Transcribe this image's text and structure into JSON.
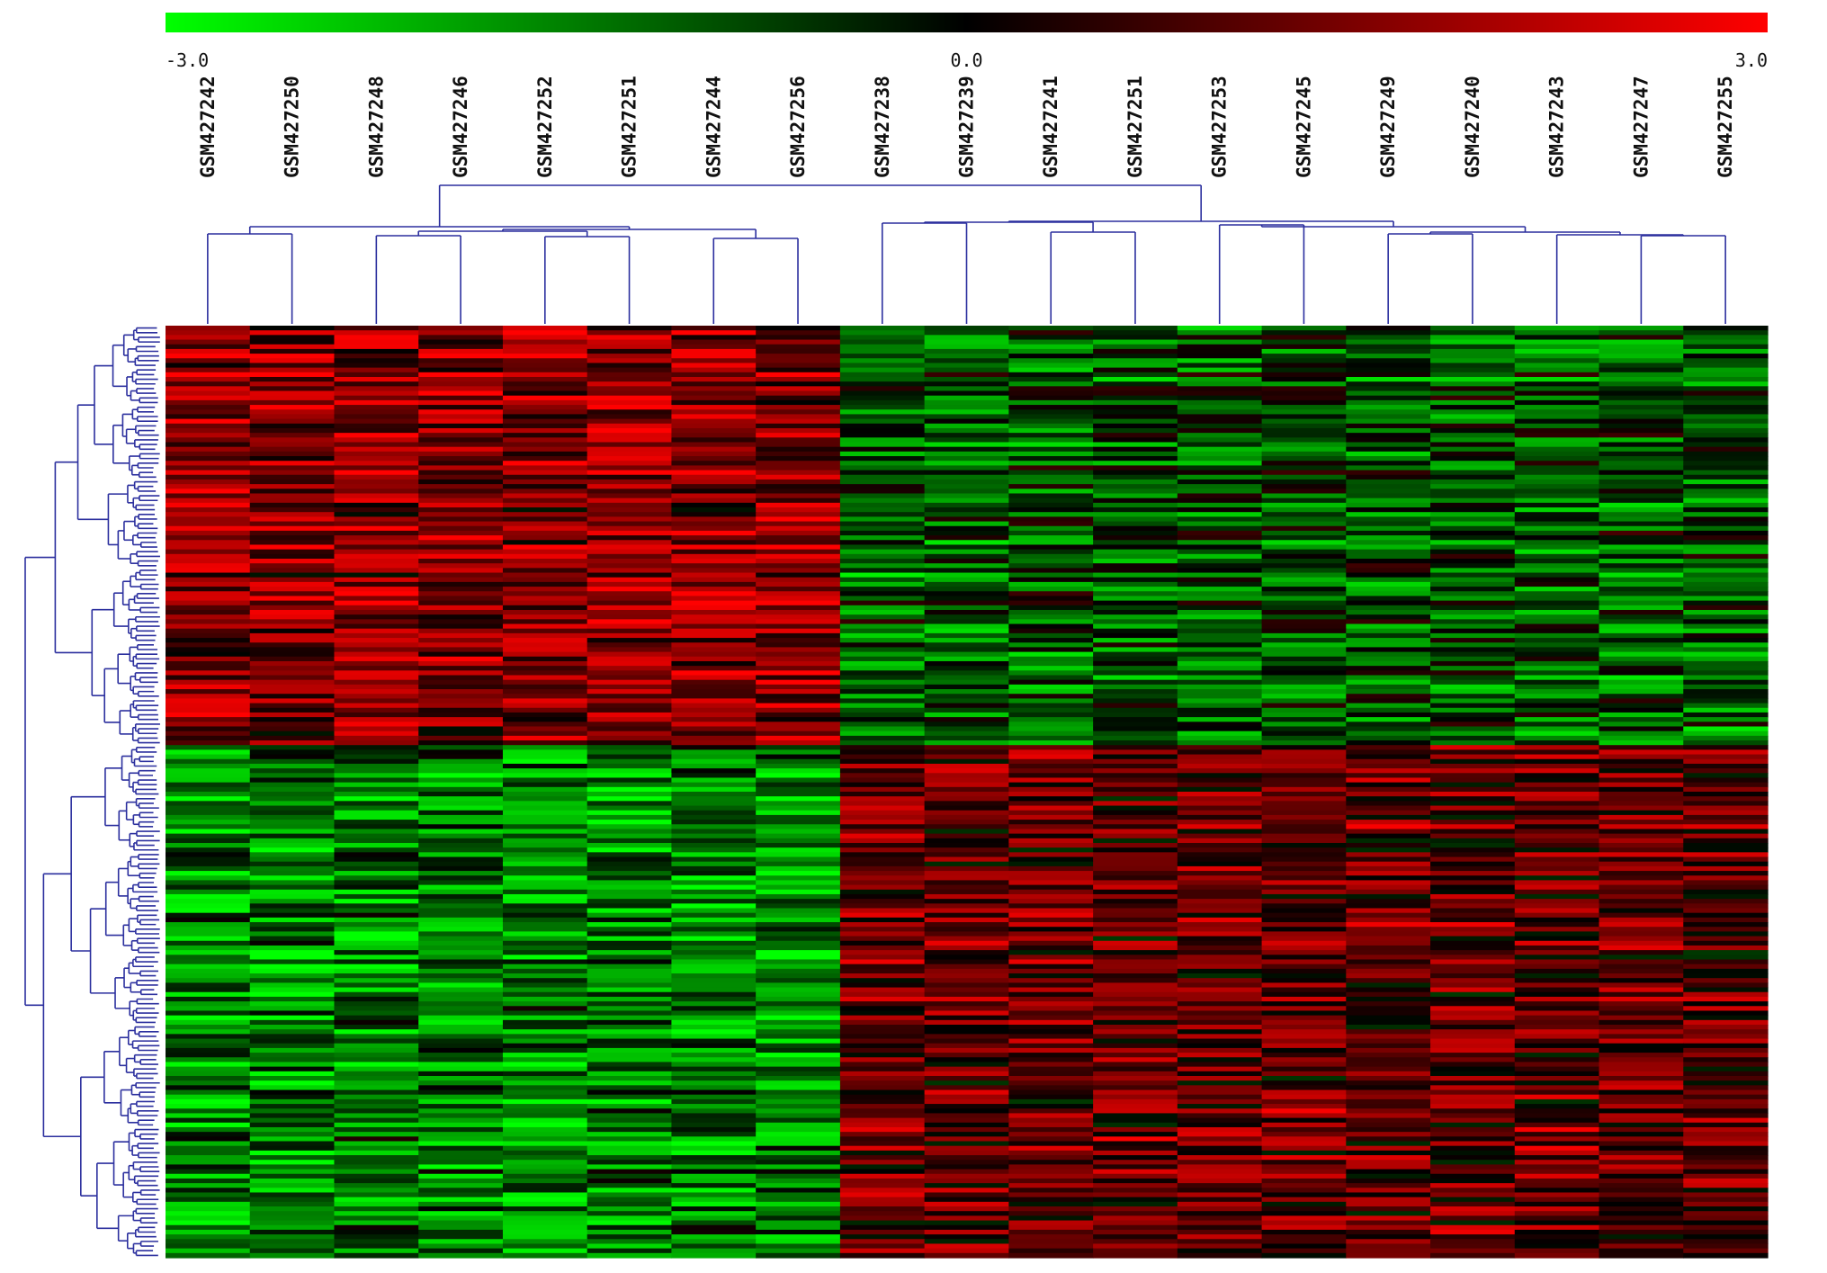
{
  "chart_data": {
    "type": "heatmap",
    "color_scale": {
      "min": -3.0,
      "mid": 0.0,
      "max": 3.0,
      "tick_labels": [
        "-3.0",
        "0.0",
        "3.0"
      ],
      "colors": [
        "#00ff00",
        "#000000",
        "#ff0000"
      ]
    },
    "columns": [
      "GSM427242",
      "GSM427250",
      "GSM427248",
      "GSM427246",
      "GSM427252",
      "GSM427251",
      "GSM427244",
      "GSM427256",
      "GSM427238",
      "GSM427239",
      "GSM427241",
      "GSM427251",
      "GSM427253",
      "GSM427245",
      "GSM427249",
      "GSM427240",
      "GSM427243",
      "GSM427247",
      "GSM427255"
    ],
    "groups": [
      {
        "columns": [
          0,
          7
        ],
        "upper_block_tendency": 1.6,
        "lower_block_tendency": -1.5
      },
      {
        "columns": [
          8,
          18
        ],
        "upper_block_tendency": -1.0,
        "lower_block_tendency": 1.1
      }
    ],
    "row_block_split_fraction": 0.45,
    "row_count": 200,
    "column_dendrogram": true,
    "row_dendrogram": true,
    "dendrogram_color": "#2b2f9e",
    "legend_position": "top"
  }
}
